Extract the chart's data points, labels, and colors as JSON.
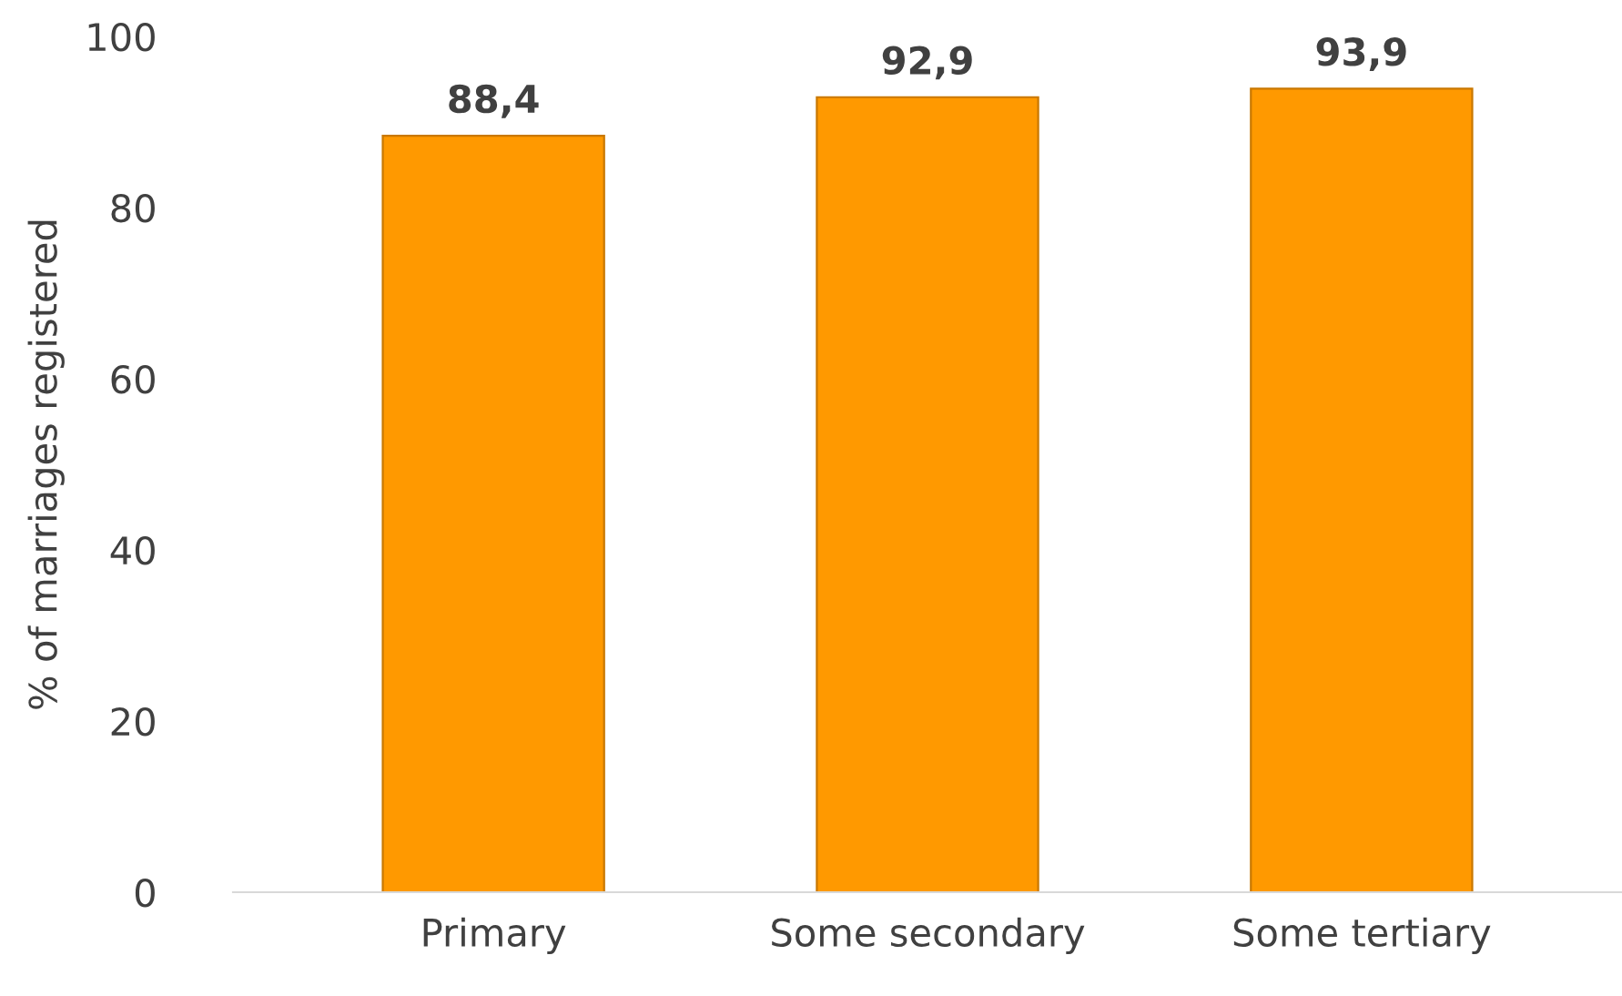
{
  "chart_data": {
    "type": "bar",
    "ylabel": "% of marriages registered",
    "categories": [
      "Primary",
      "Some secondary",
      "Some tertiary"
    ],
    "values": [
      88.4,
      92.9,
      93.9
    ],
    "value_labels": [
      "88,4",
      "92,9",
      "93,9"
    ],
    "color": "#ff9900",
    "ylim": [
      0,
      100
    ],
    "yticks": [
      0,
      20,
      40,
      60,
      80,
      100
    ],
    "grid": false,
    "legend": false
  }
}
